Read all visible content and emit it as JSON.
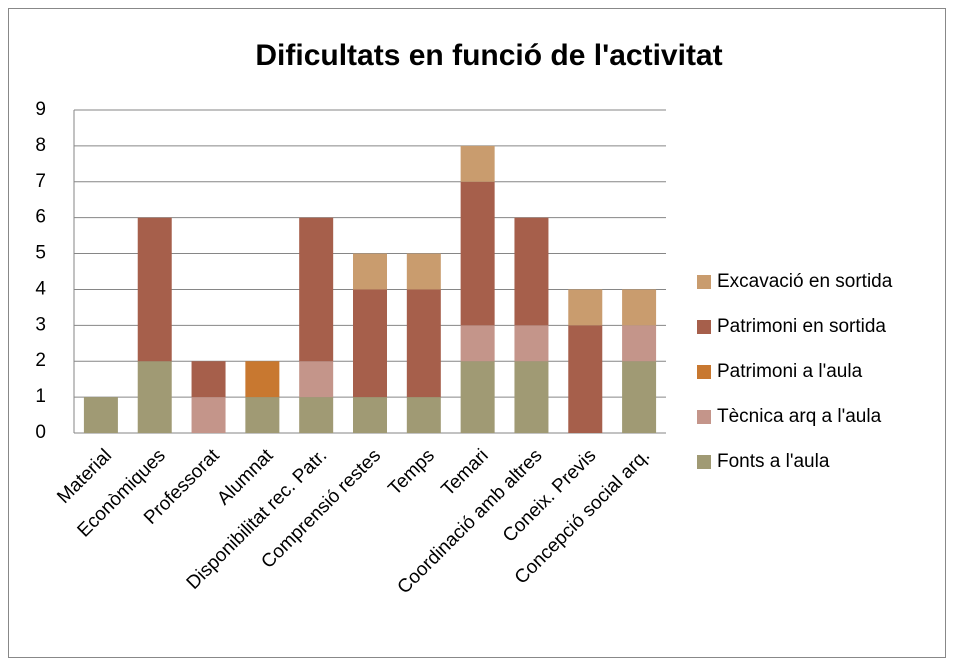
{
  "chart_data": {
    "type": "bar",
    "stacked": true,
    "title": "Dificultats en funció de l'activitat",
    "categories": [
      "Material",
      "Econòmiques",
      "Professorat",
      "Alumnat",
      "Disponibilitat rec. Patr.",
      "Comprensió restes",
      "Temps",
      "Temari",
      "Coordinació amb altres",
      "Coneix. Previs",
      "Concepció social arq."
    ],
    "series": [
      {
        "name": "Fonts a l'aula",
        "color": "#a09a74",
        "values": [
          1,
          2,
          0,
          1,
          1,
          1,
          1,
          2,
          2,
          0,
          2
        ]
      },
      {
        "name": "Tècnica arq a l'aula",
        "color": "#c4958a",
        "values": [
          0,
          0,
          1,
          0,
          1,
          0,
          0,
          1,
          1,
          0,
          1
        ]
      },
      {
        "name": "Patrimoni a l'aula",
        "color": "#c87830",
        "values": [
          0,
          0,
          0,
          1,
          0,
          0,
          0,
          0,
          0,
          0,
          0
        ]
      },
      {
        "name": "Patrimoni en sortida",
        "color": "#a65f4b",
        "values": [
          0,
          4,
          1,
          0,
          4,
          3,
          3,
          4,
          3,
          3,
          0
        ]
      },
      {
        "name": "Excavació en sortida",
        "color": "#c99c6e",
        "values": [
          0,
          0,
          0,
          0,
          0,
          1,
          1,
          1,
          0,
          1,
          1
        ]
      }
    ],
    "ylim": [
      0,
      9
    ],
    "yticks": [
      0,
      1,
      2,
      3,
      4,
      5,
      6,
      7,
      8,
      9
    ],
    "grid": true,
    "legend": "right"
  }
}
